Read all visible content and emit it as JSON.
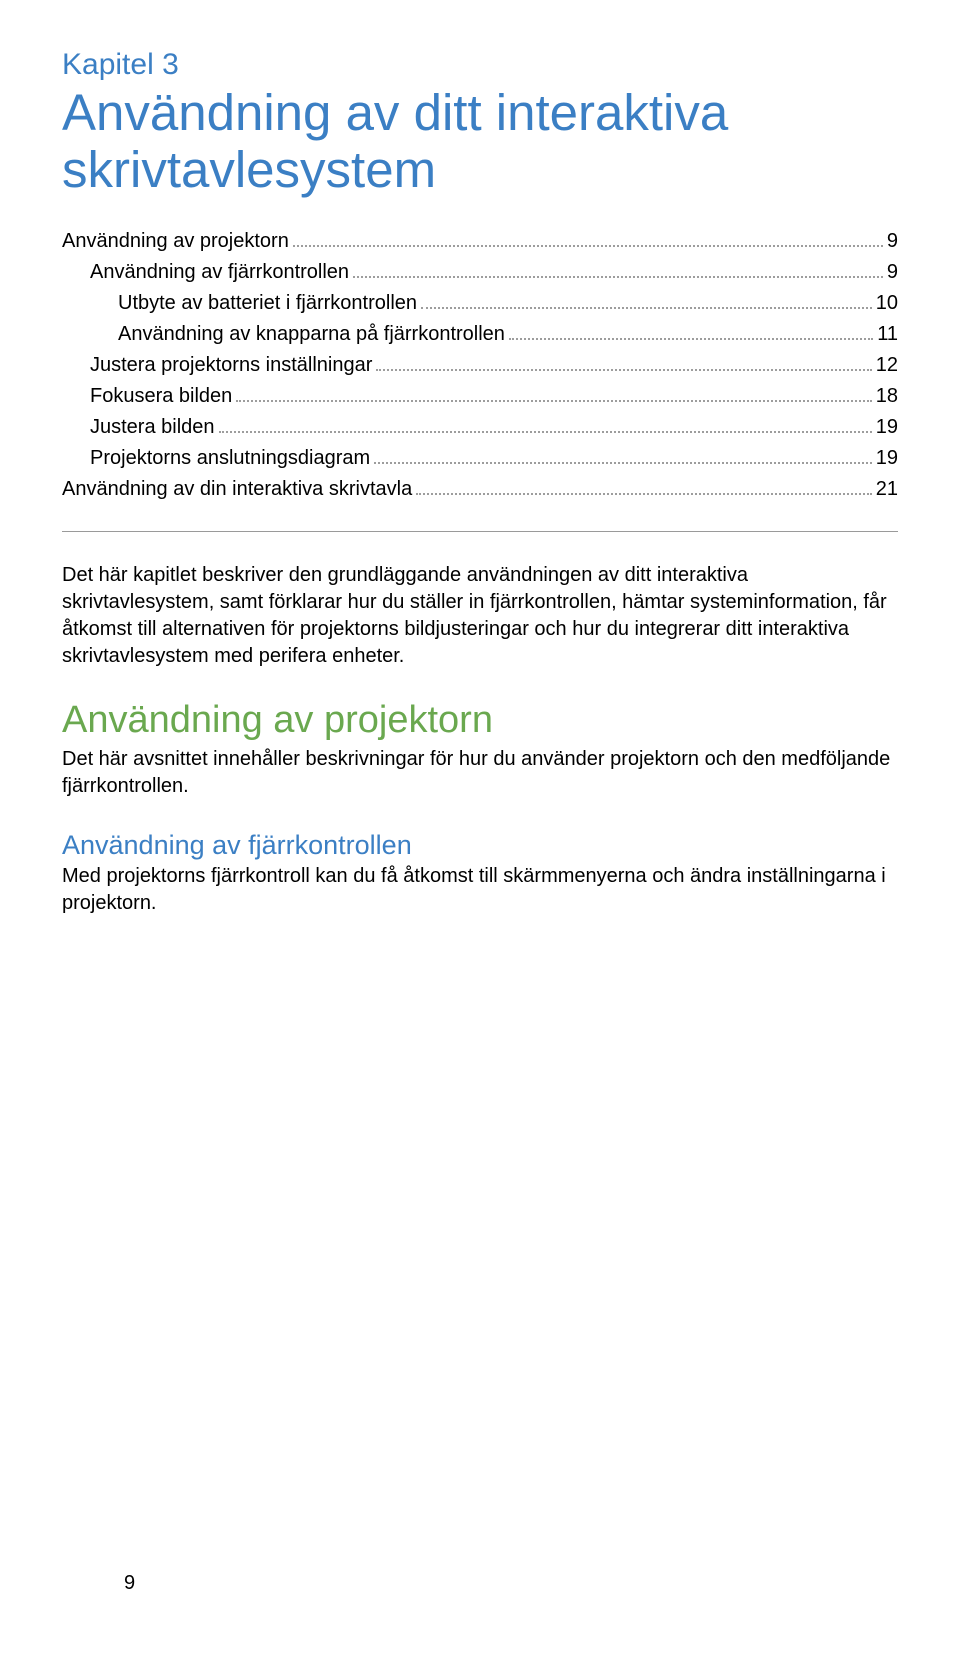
{
  "chapter": {
    "label": "Kapitel 3",
    "title": "Användning av ditt interaktiva skrivtavlesystem"
  },
  "toc": [
    {
      "label": "Användning av projektorn",
      "page": "9",
      "indent": 0
    },
    {
      "label": "Användning av fjärrkontrollen",
      "page": "9",
      "indent": 1
    },
    {
      "label": "Utbyte av batteriet i fjärrkontrollen",
      "page": "10",
      "indent": 2
    },
    {
      "label": "Användning av knapparna på fjärrkontrollen",
      "page": "11",
      "indent": 2
    },
    {
      "label": "Justera projektorns inställningar",
      "page": "12",
      "indent": 1
    },
    {
      "label": "Fokusera bilden",
      "page": "18",
      "indent": 1
    },
    {
      "label": "Justera bilden",
      "page": "19",
      "indent": 1
    },
    {
      "label": "Projektorns anslutningsdiagram",
      "page": "19",
      "indent": 1
    },
    {
      "label": "Användning av din interaktiva skrivtavla",
      "page": "21",
      "indent": 0
    }
  ],
  "body": {
    "intro": "Det här kapitlet beskriver den grundläggande användningen av ditt interaktiva skrivtavlesystem, samt förklarar hur du ställer in fjärrkontrollen, hämtar systeminformation, får åtkomst till alternativen för projektorns bildjusteringar och hur du integrerar ditt interaktiva skrivtavlesystem med perifera enheter.",
    "section1": {
      "heading": "Användning av projektorn",
      "text": "Det här avsnittet innehåller beskrivningar för hur du använder projektorn och den medföljande fjärrkontrollen."
    },
    "section2": {
      "heading": "Användning av fjärrkontrollen",
      "text": "Med projektorns fjärrkontroll kan du få åtkomst till skärmmenyerna och ändra inställningarna i projektorn."
    }
  },
  "pageNumber": "9"
}
